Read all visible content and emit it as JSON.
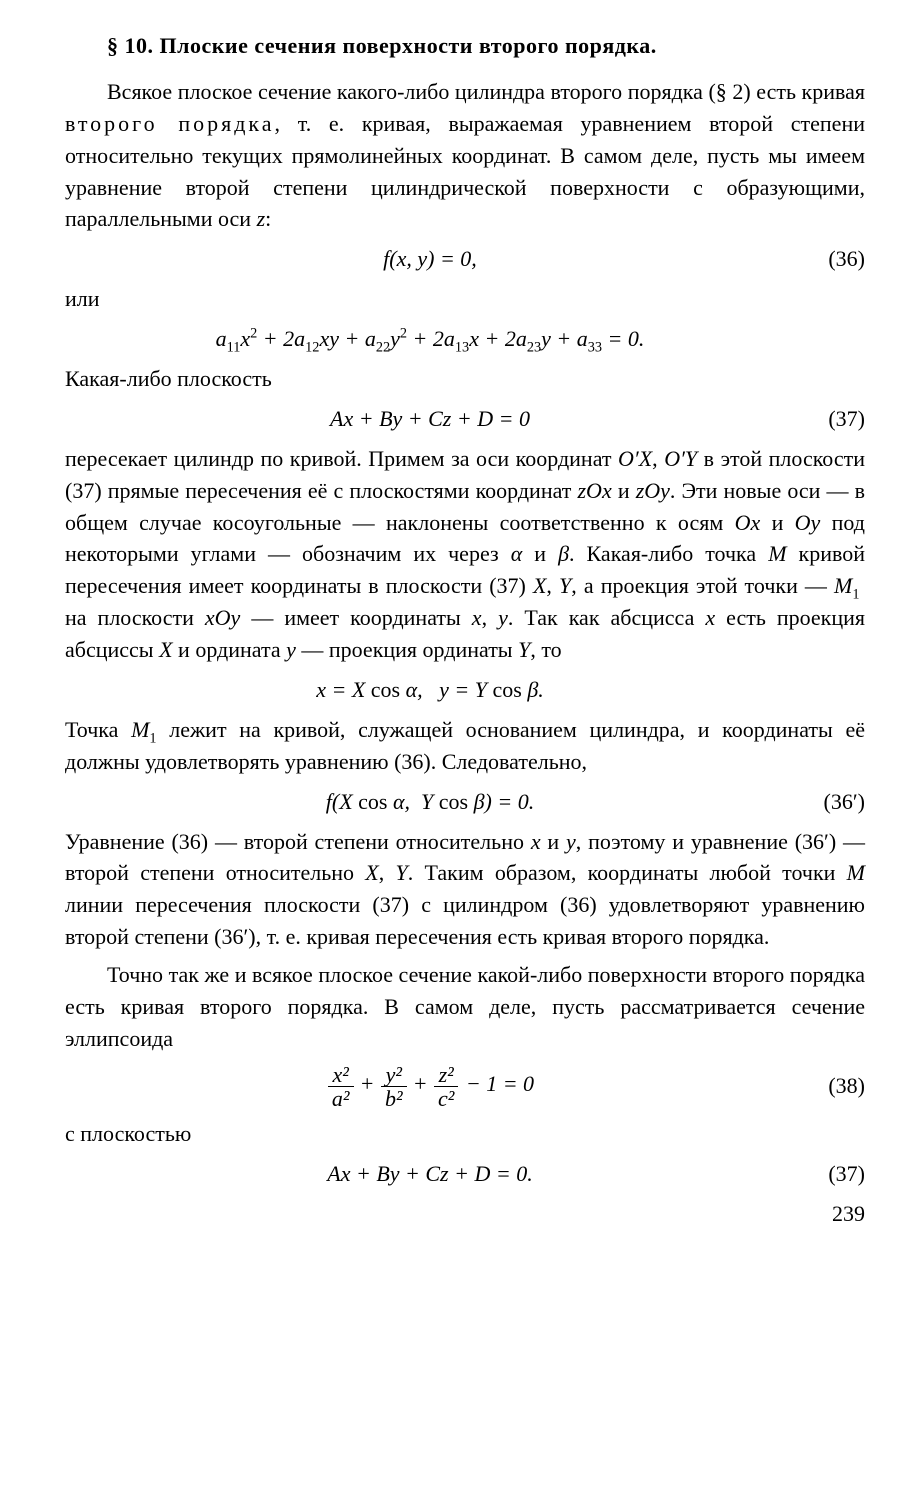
{
  "title": "§ 10. Плоские сечения поверхности второго порядка.",
  "p1a": "Всякое плоское сечение какого-либо цилиндра второго порядка (§ 2) есть кривая ",
  "p1_spaced": "второго порядка",
  "p1b": ", т. е. кривая, выражаемая уравнением второй степени относительно текущих прямолинейных координат. В самом деле, пусть мы имеем уравнение второй степени цилиндрической поверхности с образующими, параллельными оси ",
  "p1_z": "z",
  "p1c": ":",
  "eq36": "f(x,  y) = 0,",
  "eq36_num": "(36)",
  "ili": "или",
  "eq36_long": "a₁₁x² + 2a₁₂xy + a₂₂y² + 2a₁₃x + 2a₂₃y + a₃₃ = 0.",
  "p2": "Какая-либо плоскость",
  "eq37": "Ax + By + Cz + D = 0",
  "eq37_num": "(37)",
  "p3": "пересекает цилиндр по кривой. Примем за оси координат O′X, O′Y в этой плоскости (37) прямые пересечения её с плоскостями координат zOx и zOy. Эти новые оси — в общем случае косоугольные — наклонены соответственно к осям Ox и Oy под некоторыми углами — обозначим их через α и β. Какая-либо точка M кривой пересечения имеет координаты в плоскости (37) X, Y, а проекция этой точки — M₁ на плоскости xOy — имеет координаты x, y. Так как абсцисса x есть проекция абсциссы X и ордината y — проекция ординаты Y, то",
  "eq_xy": "x = X cos α,  y = Y cos β.",
  "p4": "Точка M₁ лежит на кривой, служащей основанием цилиндра, и координаты её должны удовлетворять уравнению (36). Следовательно,",
  "eq36p": "f(X cos α,  Y cos β) = 0.",
  "eq36p_num": "(36′)",
  "p5": "Уравнение (36) — второй степени относительно x и y, поэтому и уравнение (36′) — второй степени относительно X, Y. Таким образом, координаты любой точки M линии пересечения плоскости (37) с цилиндром (36) удовлетворяют уравнению второй степени (36′), т. е. кривая пересечения есть кривая второго порядка.",
  "p6": "Точно так же и всякое плоское сечение какой-либо поверхности второго порядка есть кривая второго порядка. В самом деле, пусть рассматривается сечение эллипсоида",
  "eq38_num": "(38)",
  "frac1_num": "x²",
  "frac1_den": "a²",
  "frac2_num": "y²",
  "frac2_den": "b²",
  "frac3_num": "z²",
  "frac3_den": "c²",
  "eq38_tail": " − 1 = 0",
  "p7": "с плоскостью",
  "eq37b": "Ax + By + Cz + D = 0.",
  "eq37b_num": "(37)",
  "page": "239"
}
